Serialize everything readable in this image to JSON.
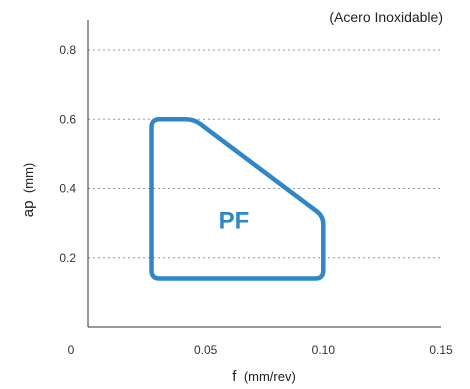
{
  "chart_data": {
    "type": "area",
    "subtitle": "(Acero Inoxidable)",
    "xlabel": {
      "main": "f",
      "unit": "(mm/rev)"
    },
    "ylabel": {
      "main": "ap",
      "unit": "(mm)"
    },
    "xlim": [
      0,
      0.15
    ],
    "ylim": [
      0,
      0.8
    ],
    "x_ticks": [
      0,
      0.05,
      0.1,
      0.15
    ],
    "x_tick_labels": [
      "0",
      "0.05",
      "0.10",
      "0.15"
    ],
    "y_ticks": [
      0.2,
      0.4,
      0.6,
      0.8
    ],
    "y_tick_labels": [
      "0.2",
      "0.4",
      "0.6",
      "0.8"
    ],
    "grid": "horizontal dotted",
    "region": {
      "label": "PF",
      "color": "#2f86c8",
      "label_at": {
        "x": 0.062,
        "y": 0.31
      },
      "points": [
        {
          "x": 0.027,
          "y": 0.14
        },
        {
          "x": 0.1,
          "y": 0.14
        },
        {
          "x": 0.1,
          "y": 0.32
        },
        {
          "x": 0.045,
          "y": 0.6
        },
        {
          "x": 0.027,
          "y": 0.6
        }
      ]
    }
  }
}
